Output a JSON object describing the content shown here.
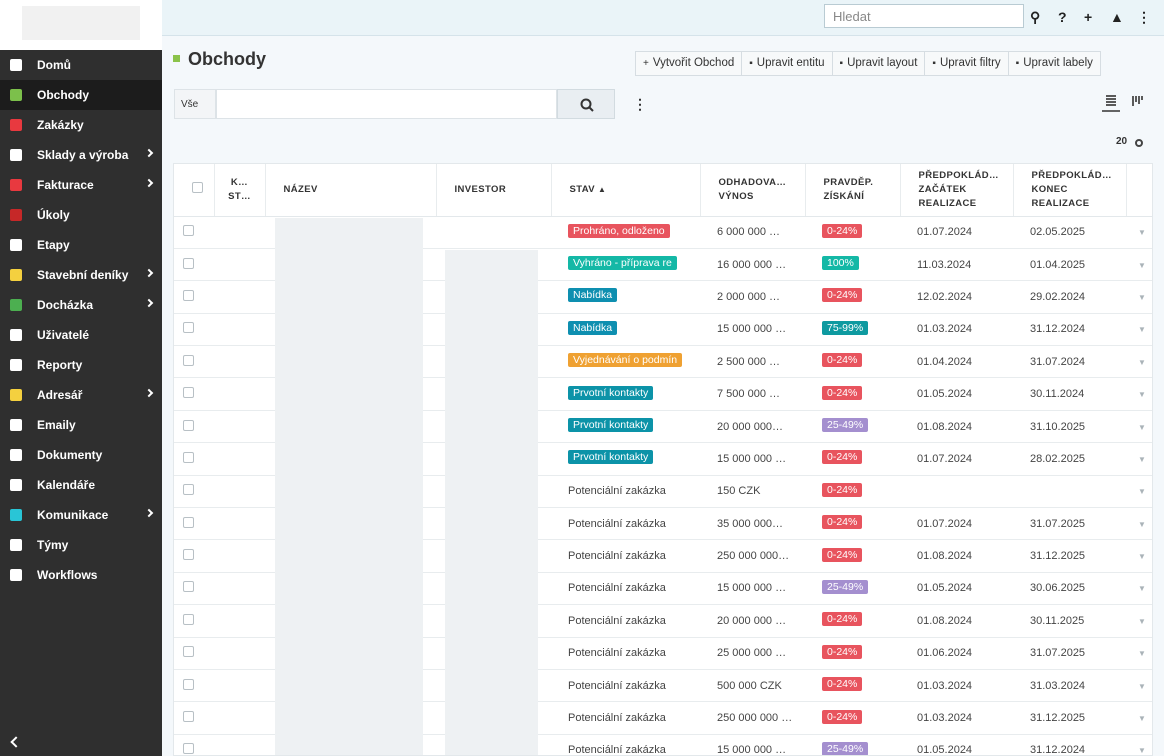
{
  "topbar": {
    "search_placeholder": "Hledat"
  },
  "sidebar": {
    "items": [
      {
        "label": "Domů"
      },
      {
        "label": "Obchody",
        "active": true
      },
      {
        "label": "Zakázky"
      },
      {
        "label": "Sklady a výroba",
        "submenu": true
      },
      {
        "label": "Fakturace",
        "submenu": true
      },
      {
        "label": "Úkoly"
      },
      {
        "label": "Etapy"
      },
      {
        "label": "Stavební deníky",
        "submenu": true
      },
      {
        "label": "Docházka",
        "submenu": true
      },
      {
        "label": "Uživatelé"
      },
      {
        "label": "Reporty"
      },
      {
        "label": "Adresář",
        "submenu": true
      },
      {
        "label": "Emaily"
      },
      {
        "label": "Dokumenty"
      },
      {
        "label": "Kalendáře"
      },
      {
        "label": "Komunikace",
        "submenu": true
      },
      {
        "label": "Týmy"
      },
      {
        "label": "Workflows"
      }
    ]
  },
  "header": {
    "title": "Obchody"
  },
  "toolbar": {
    "buttons": [
      "Vytvořit Obchod",
      "Upravit entitu",
      "Upravit layout",
      "Upravit filtry",
      "Upravit labely"
    ]
  },
  "filter": {
    "scope": "Vše",
    "page_size": "20"
  },
  "table": {
    "columns": [
      "K… ST…",
      "NÁZEV",
      "INVESTOR",
      "STAV",
      "ODHADOVA… VÝNOS",
      "PRAVDĚP. ZÍSKÁNÍ",
      "PŘEDPOKLÁD… ZAČÁTEK REALIZACE",
      "PŘEDPOKLÁD… KONEC REALIZACE"
    ],
    "rows": [
      {
        "status": "Prohráno, odloženo",
        "status_color": "#e8545e",
        "revenue": "6 000 000 …",
        "probability": "0-24%",
        "probability_color": "#e8545e",
        "start": "01.07.2024",
        "end": "02.05.2025"
      },
      {
        "status": "Vyhráno - příprava re",
        "status_color": "#14b8a6",
        "revenue": "16 000 000 …",
        "probability": "100%",
        "probability_color": "#14b8a6",
        "start": "11.03.2024",
        "end": "01.04.2025"
      },
      {
        "status": "Nabídka",
        "status_color": "#0e8fb0",
        "revenue": "2 000 000 …",
        "probability": "0-24%",
        "probability_color": "#e8545e",
        "start": "12.02.2024",
        "end": "29.02.2024"
      },
      {
        "status": "Nabídka",
        "status_color": "#0e8fb0",
        "revenue": "15 000 000 …",
        "probability": "75-99%",
        "probability_color": "#0e9aa0",
        "start": "01.03.2024",
        "end": "31.12.2024"
      },
      {
        "status": "Vyjednávání o podmín",
        "status_color": "#efa132",
        "revenue": "2 500 000 …",
        "probability": "0-24%",
        "probability_color": "#e8545e",
        "start": "01.04.2024",
        "end": "31.07.2024"
      },
      {
        "status": "Prvotní kontakty",
        "status_color": "#0c93a8",
        "revenue": "7 500 000 …",
        "probability": "0-24%",
        "probability_color": "#e8545e",
        "start": "01.05.2024",
        "end": "30.11.2024"
      },
      {
        "status": "Prvotní kontakty",
        "status_color": "#0c93a8",
        "revenue": "20 000 000…",
        "probability": "25-49%",
        "probability_color": "#a48fcf",
        "start": "01.08.2024",
        "end": "31.10.2025"
      },
      {
        "status": "Prvotní kontakty",
        "status_color": "#0c93a8",
        "revenue": "15 000 000 …",
        "probability": "0-24%",
        "probability_color": "#e8545e",
        "start": "01.07.2024",
        "end": "28.02.2025"
      },
      {
        "status": "Potenciální zakázka",
        "revenue": "150 CZK",
        "probability": "0-24%",
        "probability_color": "#e8545e"
      },
      {
        "status": "Potenciální zakázka",
        "revenue": "35 000 000…",
        "probability": "0-24%",
        "probability_color": "#e8545e",
        "start": "01.07.2024",
        "end": "31.07.2025"
      },
      {
        "status": "Potenciální zakázka",
        "revenue": "250 000 000…",
        "probability": "0-24%",
        "probability_color": "#e8545e",
        "start": "01.08.2024",
        "end": "31.12.2025"
      },
      {
        "status": "Potenciální zakázka",
        "revenue": "15 000 000 …",
        "probability": "25-49%",
        "probability_color": "#a48fcf",
        "start": "01.05.2024",
        "end": "30.06.2025"
      },
      {
        "status": "Potenciální zakázka",
        "revenue": "20 000 000 …",
        "probability": "0-24%",
        "probability_color": "#e8545e",
        "start": "01.08.2024",
        "end": "30.11.2025"
      },
      {
        "status": "Potenciální zakázka",
        "revenue": "25 000 000 …",
        "probability": "0-24%",
        "probability_color": "#e8545e",
        "start": "01.06.2024",
        "end": "31.07.2025"
      },
      {
        "status": "Potenciální zakázka",
        "revenue": "500 000 CZK",
        "probability": "0-24%",
        "probability_color": "#e8545e",
        "start": "01.03.2024",
        "end": "31.03.2024"
      },
      {
        "status": "Potenciální zakázka",
        "revenue": "250 000 000 …",
        "probability": "0-24%",
        "probability_color": "#e8545e",
        "start": "01.03.2024",
        "end": "31.12.2025"
      },
      {
        "status": "Potenciální zakázka",
        "revenue": "15 000 000 …",
        "probability": "25-49%",
        "probability_color": "#a48fcf",
        "start": "01.05.2024",
        "end": "31.12.2024"
      }
    ]
  }
}
